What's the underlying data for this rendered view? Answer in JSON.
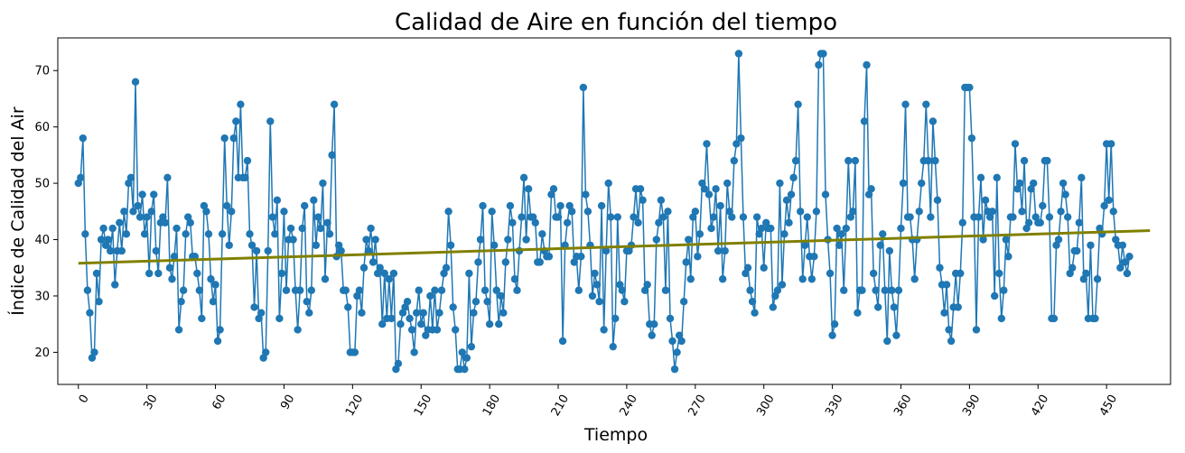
{
  "chart_data": {
    "type": "line",
    "title": "Calidad de Aire en función del tiempo",
    "xlabel": "Tiempo",
    "ylabel": "Índice de Calidad del Air",
    "xlim": [
      -9,
      478
    ],
    "ylim": [
      14.3,
      75.8
    ],
    "x_ticks": [
      0,
      30,
      60,
      90,
      120,
      150,
      180,
      210,
      240,
      270,
      300,
      330,
      360,
      390,
      420,
      450
    ],
    "y_ticks": [
      20,
      30,
      40,
      50,
      60,
      70
    ],
    "grid": false,
    "legend": "none",
    "series": [
      {
        "style": "line+markers",
        "color": "#1f77b4",
        "x_start": 0,
        "x_step": 1,
        "values": [
          50,
          51,
          58,
          41,
          31,
          27,
          19,
          20,
          34,
          29,
          40,
          42,
          39,
          40,
          38,
          42,
          32,
          38,
          43,
          38,
          45,
          41,
          50,
          51,
          45,
          68,
          46,
          44,
          48,
          41,
          44,
          34,
          45,
          48,
          38,
          34,
          43,
          44,
          43,
          51,
          35,
          33,
          37,
          42,
          24,
          29,
          31,
          41,
          44,
          43,
          37,
          37,
          34,
          31,
          26,
          46,
          45,
          41,
          33,
          29,
          32,
          22,
          24,
          41,
          58,
          46,
          39,
          45,
          58,
          61,
          51,
          64,
          51,
          51,
          54,
          41,
          39,
          28,
          38,
          26,
          27,
          19,
          20,
          38,
          61,
          44,
          41,
          47,
          26,
          34,
          45,
          31,
          40,
          42,
          40,
          31,
          24,
          31,
          42,
          46,
          29,
          27,
          31,
          47,
          39,
          44,
          42,
          50,
          33,
          43,
          41,
          55,
          64,
          37,
          39,
          38,
          31,
          31,
          28,
          20,
          20,
          20,
          30,
          31,
          27,
          35,
          40,
          38,
          42,
          36,
          40,
          34,
          35,
          25,
          34,
          26,
          33,
          26,
          34,
          17,
          18,
          25,
          27,
          28,
          29,
          26,
          24,
          20,
          27,
          31,
          25,
          27,
          23,
          24,
          30,
          24,
          31,
          24,
          27,
          31,
          34,
          35,
          45,
          39,
          28,
          24,
          17,
          17,
          20,
          17,
          19,
          34,
          21,
          27,
          29,
          36,
          40,
          46,
          31,
          29,
          25,
          45,
          39,
          31,
          25,
          30,
          27,
          36,
          40,
          46,
          43,
          33,
          31,
          38,
          44,
          51,
          40,
          49,
          44,
          44,
          43,
          36,
          36,
          41,
          38,
          37,
          37,
          48,
          49,
          44,
          44,
          46,
          22,
          39,
          43,
          46,
          45,
          36,
          37,
          31,
          37,
          67,
          48,
          45,
          39,
          30,
          34,
          32,
          29,
          46,
          24,
          38,
          50,
          44,
          21,
          26,
          44,
          32,
          31,
          29,
          38,
          38,
          39,
          44,
          49,
          43,
          49,
          47,
          31,
          32,
          25,
          23,
          25,
          40,
          43,
          47,
          44,
          31,
          45,
          26,
          22,
          17,
          20,
          23,
          22,
          29,
          36,
          40,
          33,
          44,
          45,
          37,
          41,
          50,
          49,
          57,
          48,
          42,
          44,
          49,
          38,
          46,
          33,
          38,
          50,
          45,
          44,
          54,
          57,
          73,
          58,
          44,
          34,
          35,
          31,
          29,
          27,
          44,
          41,
          42,
          35,
          43,
          42,
          42,
          28,
          30,
          31,
          50,
          32,
          41,
          47,
          43,
          48,
          51,
          54,
          64,
          45,
          33,
          39,
          44,
          37,
          33,
          37,
          45,
          71,
          73,
          73,
          48,
          40,
          34,
          23,
          25,
          42,
          39,
          41,
          31,
          42,
          54,
          44,
          45,
          54,
          27,
          31,
          31,
          61,
          71,
          48,
          49,
          34,
          31,
          28,
          39,
          41,
          31,
          22,
          38,
          31,
          28,
          23,
          31,
          42,
          50,
          64,
          44,
          44,
          40,
          33,
          40,
          45,
          50,
          54,
          64,
          54,
          44,
          61,
          54,
          47,
          35,
          32,
          27,
          32,
          24,
          22,
          28,
          34,
          28,
          34,
          43,
          67,
          67,
          67,
          58,
          44,
          24,
          44,
          51,
          40,
          47,
          45,
          44,
          45,
          30,
          51,
          34,
          26,
          31,
          40,
          37,
          44,
          44,
          57,
          49,
          50,
          45,
          54,
          42,
          43,
          49,
          50,
          44,
          43,
          43,
          46,
          54,
          54,
          44,
          26,
          26,
          39,
          40,
          45,
          50,
          48,
          44,
          34,
          35,
          38,
          38,
          43,
          51,
          33,
          34,
          26,
          39,
          26,
          26,
          33,
          42,
          41,
          46,
          57,
          47,
          57,
          45,
          40,
          39,
          35,
          39,
          36,
          34,
          37
        ]
      },
      {
        "style": "trend-line",
        "color": "#808000",
        "x": [
          0,
          469
        ],
        "values": [
          35.8,
          41.6
        ]
      }
    ]
  }
}
